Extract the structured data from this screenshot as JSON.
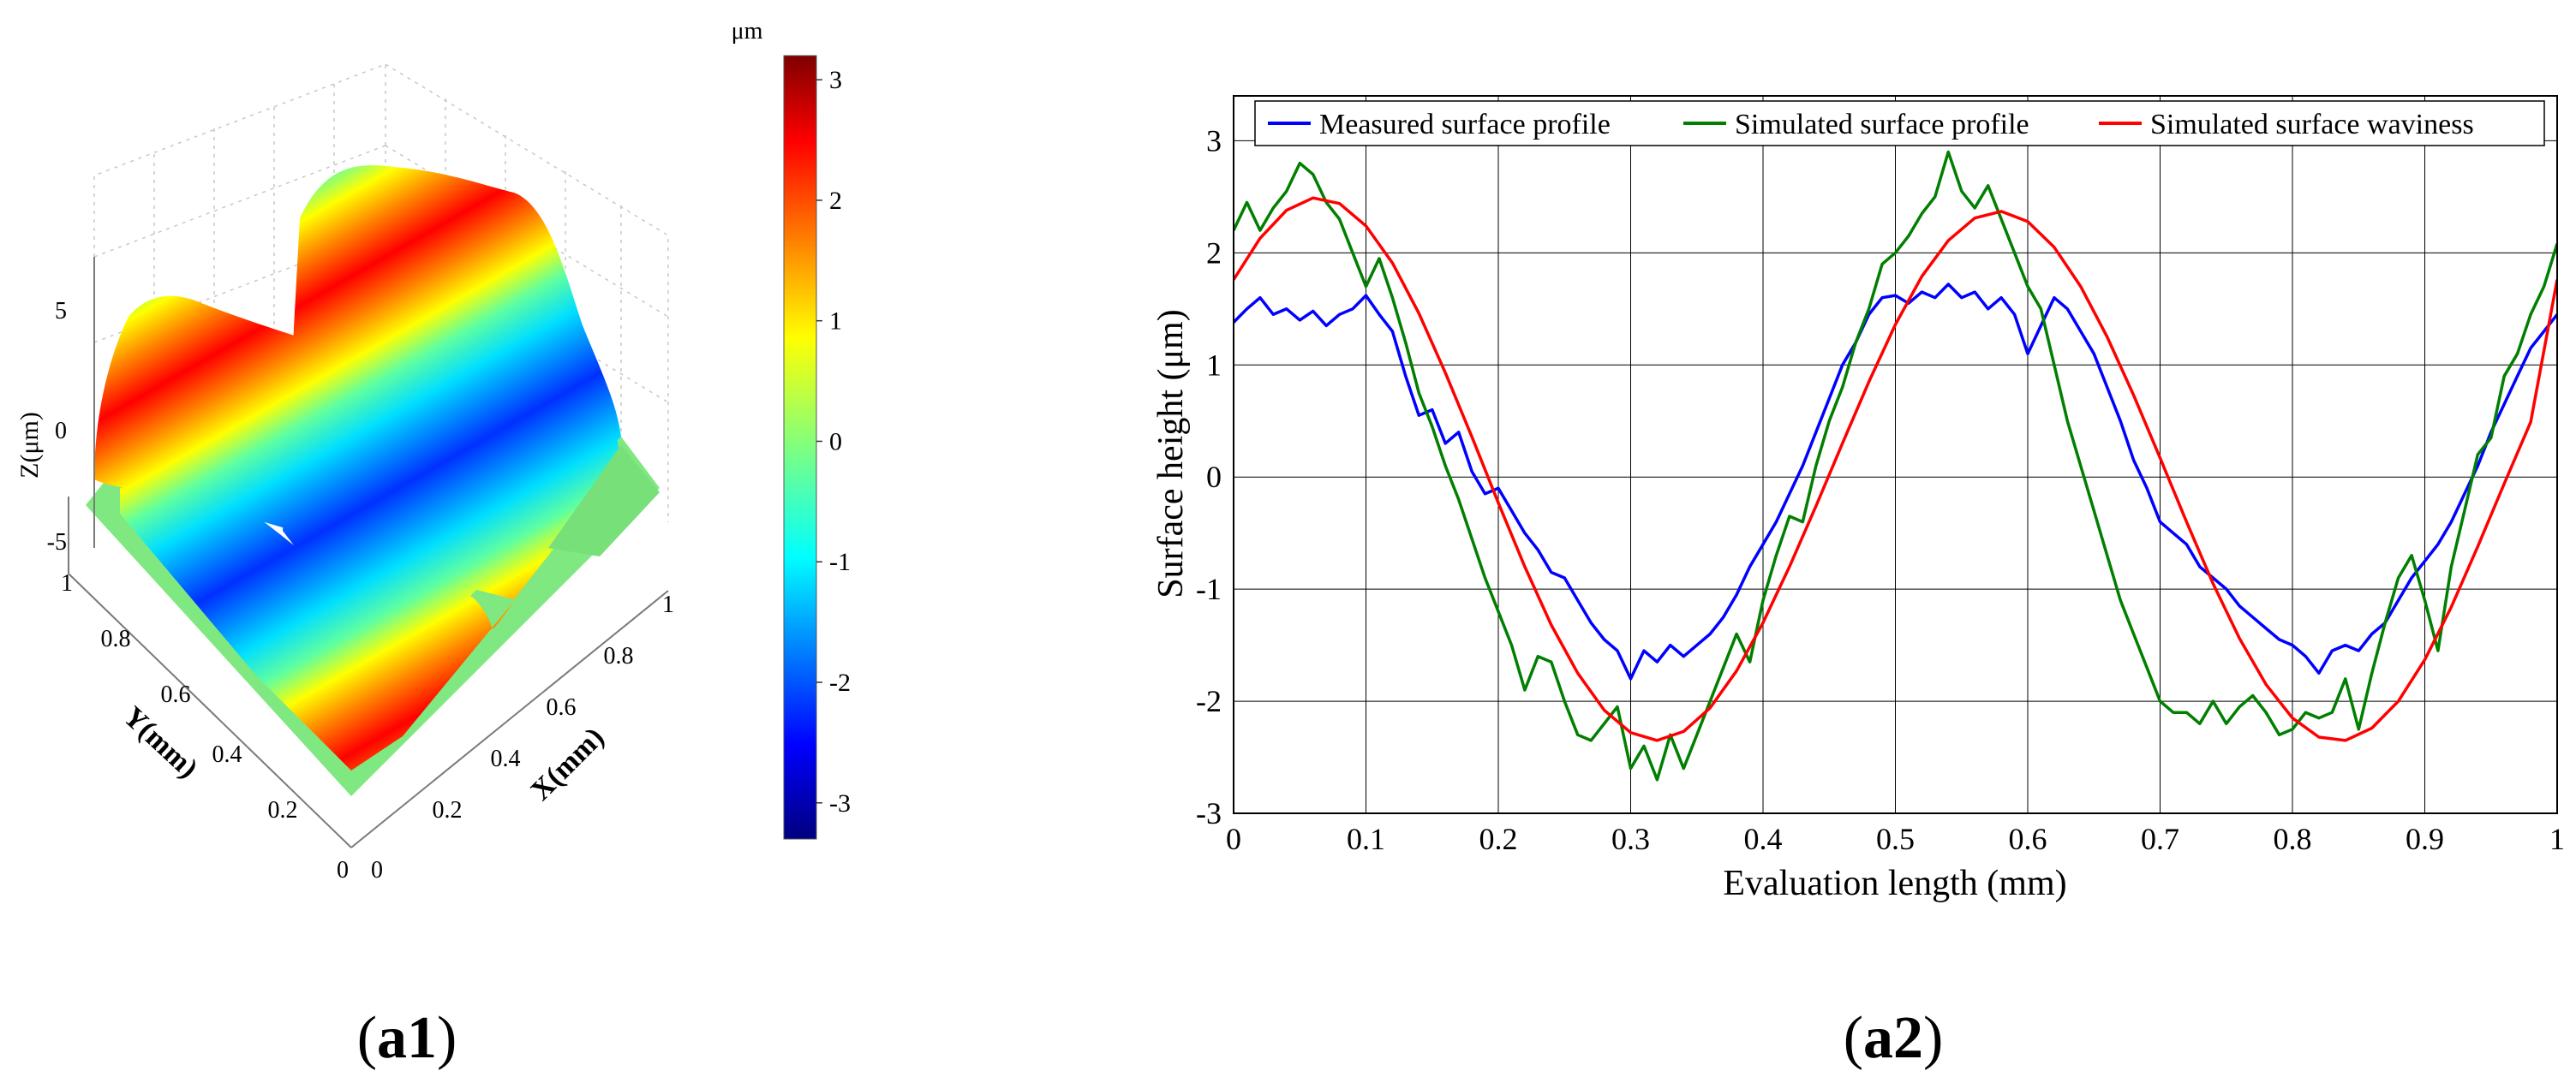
{
  "panels": {
    "a1": {
      "label": "a1"
    },
    "a2": {
      "label": "a2"
    }
  },
  "surface_plot": {
    "colorbar": {
      "unit": "μm",
      "min": -3.3,
      "max": 3.2,
      "ticks": [
        "3",
        "2",
        "1",
        "0",
        "-1",
        "-2",
        "-3"
      ],
      "tick_values": [
        3,
        2,
        1,
        0,
        -1,
        -2,
        -3
      ],
      "colormap": [
        "#00007f",
        "#0000ff",
        "#007fff",
        "#00ffff",
        "#7fff7f",
        "#ffff00",
        "#ff7f00",
        "#ff0000",
        "#7f0000"
      ]
    },
    "z_axis": {
      "label": "Z(μm)",
      "ticks": [
        "5",
        "0",
        "-5"
      ]
    },
    "y_axis": {
      "label": "Y(mm)",
      "ticks": [
        "1",
        "0.8",
        "0.6",
        "0.4",
        "0.2",
        "0"
      ]
    },
    "x_axis": {
      "label": "X(mm)",
      "ticks": [
        "0",
        "0.2",
        "0.4",
        "0.6",
        "0.8",
        "1"
      ]
    },
    "base_color": "#7fe07f"
  },
  "chart_data": {
    "type": "line",
    "title": "",
    "xlabel": "Evaluation length (mm)",
    "ylabel": "Surface height (μm)",
    "xlim": [
      0,
      1
    ],
    "ylim": [
      -3,
      3.4
    ],
    "xticks": [
      0,
      0.1,
      0.2,
      0.3,
      0.4,
      0.5,
      0.6,
      0.7,
      0.8,
      0.9,
      1
    ],
    "xtick_labels": [
      "0",
      "0.1",
      "0.2",
      "0.3",
      "0.4",
      "0.5",
      "0.6",
      "0.7",
      "0.8",
      "0.9",
      "1"
    ],
    "yticks": [
      -3,
      -2,
      -1,
      0,
      1,
      2,
      3
    ],
    "ytick_labels": [
      "-3",
      "-2",
      "-1",
      "0",
      "1",
      "2",
      "3"
    ],
    "grid": true,
    "legend_position": "top",
    "series": [
      {
        "name": "Measured surface profile",
        "color": "#0000ff",
        "x": [
          0,
          0.01,
          0.02,
          0.03,
          0.04,
          0.05,
          0.06,
          0.07,
          0.08,
          0.09,
          0.1,
          0.11,
          0.12,
          0.13,
          0.14,
          0.15,
          0.16,
          0.17,
          0.18,
          0.19,
          0.2,
          0.21,
          0.22,
          0.23,
          0.24,
          0.25,
          0.26,
          0.27,
          0.28,
          0.29,
          0.3,
          0.31,
          0.32,
          0.33,
          0.34,
          0.35,
          0.36,
          0.37,
          0.38,
          0.39,
          0.4,
          0.41,
          0.42,
          0.43,
          0.44,
          0.45,
          0.46,
          0.47,
          0.48,
          0.49,
          0.5,
          0.51,
          0.52,
          0.53,
          0.54,
          0.55,
          0.56,
          0.57,
          0.58,
          0.59,
          0.6,
          0.61,
          0.62,
          0.63,
          0.64,
          0.65,
          0.66,
          0.67,
          0.68,
          0.69,
          0.7,
          0.71,
          0.72,
          0.73,
          0.74,
          0.75,
          0.76,
          0.77,
          0.78,
          0.79,
          0.8,
          0.81,
          0.82,
          0.83,
          0.84,
          0.85,
          0.86,
          0.87,
          0.88,
          0.89,
          0.9,
          0.91,
          0.92,
          0.93,
          0.94,
          0.95,
          0.96,
          0.97,
          0.98,
          0.99,
          1
        ],
        "y": [
          1.38,
          1.5,
          1.6,
          1.45,
          1.5,
          1.4,
          1.48,
          1.35,
          1.45,
          1.5,
          1.62,
          1.45,
          1.3,
          0.9,
          0.55,
          0.6,
          0.3,
          0.4,
          0.05,
          -0.15,
          -0.1,
          -0.3,
          -0.5,
          -0.65,
          -0.85,
          -0.9,
          -1.1,
          -1.3,
          -1.45,
          -1.55,
          -1.8,
          -1.55,
          -1.65,
          -1.5,
          -1.6,
          -1.5,
          -1.4,
          -1.25,
          -1.05,
          -0.8,
          -0.6,
          -0.4,
          -0.15,
          0.1,
          0.4,
          0.7,
          1.0,
          1.2,
          1.45,
          1.6,
          1.62,
          1.55,
          1.65,
          1.6,
          1.72,
          1.6,
          1.65,
          1.5,
          1.6,
          1.45,
          1.1,
          1.35,
          1.6,
          1.5,
          1.3,
          1.1,
          0.8,
          0.5,
          0.15,
          -0.1,
          -0.4,
          -0.5,
          -0.6,
          -0.8,
          -0.9,
          -1.0,
          -1.15,
          -1.25,
          -1.35,
          -1.45,
          -1.5,
          -1.6,
          -1.75,
          -1.55,
          -1.5,
          -1.55,
          -1.4,
          -1.3,
          -1.1,
          -0.9,
          -0.75,
          -0.6,
          -0.4,
          -0.15,
          0.1,
          0.4,
          0.65,
          0.9,
          1.15,
          1.3,
          1.45
        ]
      },
      {
        "name": "Simulated surface profile",
        "color": "#007f00",
        "x": [
          0,
          0.01,
          0.02,
          0.03,
          0.04,
          0.05,
          0.06,
          0.07,
          0.08,
          0.09,
          0.1,
          0.11,
          0.12,
          0.13,
          0.14,
          0.15,
          0.16,
          0.17,
          0.18,
          0.19,
          0.2,
          0.21,
          0.22,
          0.23,
          0.24,
          0.25,
          0.26,
          0.27,
          0.28,
          0.29,
          0.3,
          0.31,
          0.32,
          0.33,
          0.34,
          0.35,
          0.36,
          0.37,
          0.38,
          0.39,
          0.4,
          0.41,
          0.42,
          0.43,
          0.44,
          0.45,
          0.46,
          0.47,
          0.48,
          0.49,
          0.5,
          0.51,
          0.52,
          0.53,
          0.54,
          0.55,
          0.56,
          0.57,
          0.58,
          0.59,
          0.6,
          0.61,
          0.62,
          0.63,
          0.64,
          0.65,
          0.66,
          0.67,
          0.68,
          0.69,
          0.7,
          0.71,
          0.72,
          0.73,
          0.74,
          0.75,
          0.76,
          0.77,
          0.78,
          0.79,
          0.8,
          0.81,
          0.82,
          0.83,
          0.84,
          0.85,
          0.86,
          0.87,
          0.88,
          0.89,
          0.9,
          0.91,
          0.92,
          0.93,
          0.94,
          0.95,
          0.96,
          0.97,
          0.98,
          0.99,
          1
        ],
        "y": [
          2.2,
          2.45,
          2.2,
          2.4,
          2.55,
          2.8,
          2.7,
          2.45,
          2.3,
          2.0,
          1.7,
          1.95,
          1.6,
          1.2,
          0.75,
          0.45,
          0.1,
          -0.2,
          -0.55,
          -0.9,
          -1.2,
          -1.5,
          -1.9,
          -1.6,
          -1.65,
          -2.0,
          -2.3,
          -2.35,
          -2.2,
          -2.05,
          -2.6,
          -2.4,
          -2.7,
          -2.3,
          -2.6,
          -2.3,
          -2.0,
          -1.7,
          -1.4,
          -1.65,
          -1.1,
          -0.7,
          -0.35,
          -0.4,
          0.1,
          0.5,
          0.8,
          1.2,
          1.5,
          1.9,
          2.0,
          2.15,
          2.35,
          2.5,
          2.9,
          2.55,
          2.4,
          2.6,
          2.3,
          2.0,
          1.7,
          1.5,
          1.0,
          0.5,
          0.1,
          -0.3,
          -0.7,
          -1.1,
          -1.4,
          -1.7,
          -2.0,
          -2.1,
          -2.1,
          -2.2,
          -2.0,
          -2.2,
          -2.05,
          -1.95,
          -2.1,
          -2.3,
          -2.25,
          -2.1,
          -2.15,
          -2.1,
          -1.8,
          -2.25,
          -1.75,
          -1.3,
          -0.9,
          -0.7,
          -1.1,
          -1.55,
          -0.8,
          -0.3,
          0.2,
          0.35,
          0.9,
          1.1,
          1.45,
          1.7,
          2.08
        ]
      },
      {
        "name": "Simulated surface waviness",
        "color": "#ff0000",
        "x": [
          0,
          0.02,
          0.04,
          0.06,
          0.08,
          0.1,
          0.12,
          0.14,
          0.16,
          0.18,
          0.2,
          0.22,
          0.24,
          0.26,
          0.28,
          0.3,
          0.32,
          0.34,
          0.36,
          0.38,
          0.4,
          0.42,
          0.44,
          0.46,
          0.48,
          0.5,
          0.52,
          0.54,
          0.56,
          0.58,
          0.6,
          0.62,
          0.64,
          0.66,
          0.68,
          0.7,
          0.72,
          0.74,
          0.76,
          0.78,
          0.8,
          0.82,
          0.84,
          0.86,
          0.88,
          0.9,
          0.92,
          0.94,
          0.96,
          0.98,
          1
        ],
        "y": [
          1.76,
          2.13,
          2.38,
          2.49,
          2.44,
          2.24,
          1.91,
          1.46,
          0.93,
          0.36,
          -0.23,
          -0.8,
          -1.32,
          -1.75,
          -2.08,
          -2.28,
          -2.35,
          -2.27,
          -2.06,
          -1.73,
          -1.3,
          -0.8,
          -0.26,
          0.3,
          0.85,
          1.36,
          1.79,
          2.11,
          2.31,
          2.37,
          2.28,
          2.05,
          1.7,
          1.25,
          0.73,
          0.17,
          -0.4,
          -0.95,
          -1.44,
          -1.85,
          -2.15,
          -2.32,
          -2.35,
          -2.24,
          -2.0,
          -1.63,
          -1.16,
          -0.62,
          -0.06,
          0.49,
          1.76
        ]
      }
    ]
  }
}
